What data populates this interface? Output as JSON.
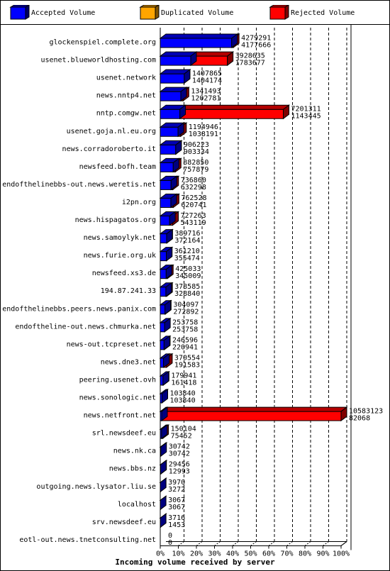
{
  "legend": {
    "items": [
      {
        "label": "Accepted Volume",
        "color": "#0000ff"
      },
      {
        "label": "Duplicated Volume",
        "color": "#ffa500"
      },
      {
        "label": "Rejected Volume",
        "color": "#ff0000"
      }
    ]
  },
  "chart_data": {
    "type": "bar",
    "xlabel": "Incoming volume received by server",
    "xlim": [
      0,
      100
    ],
    "x_ticks": [
      "0%",
      "10%",
      "20%",
      "30%",
      "40%",
      "50%",
      "60%",
      "70%",
      "80%",
      "90%",
      "100%"
    ],
    "legend_position": "top",
    "grid": true,
    "series_names": [
      "Accepted Volume",
      "Duplicated Volume",
      "Rejected Volume"
    ],
    "rows": [
      {
        "server": "glockenspiel.complete.org",
        "total": 4279291,
        "accepted": 4177666
      },
      {
        "server": "usenet.blueworldhosting.com",
        "total": 3928635,
        "accepted": 1783677
      },
      {
        "server": "usenet.network",
        "total": 1407865,
        "accepted": 1404174
      },
      {
        "server": "news.nntp4.net",
        "total": 1341493,
        "accepted": 1202781
      },
      {
        "server": "nntp.comgw.net",
        "total": 7201311,
        "accepted": 1143445
      },
      {
        "server": "usenet.goja.nl.eu.org",
        "total": 1194946,
        "accepted": 1038191
      },
      {
        "server": "news.corradoroberto.it",
        "total": 906223,
        "accepted": 903334
      },
      {
        "server": "newsfeed.bofh.team",
        "total": 882850,
        "accepted": 757879
      },
      {
        "server": "endofthelinebbs-out.news.weretis.net",
        "total": 736860,
        "accepted": 632298
      },
      {
        "server": "i2pn.org",
        "total": 762528,
        "accepted": 620741
      },
      {
        "server": "news.hispagatos.org",
        "total": 727263,
        "accepted": 543119
      },
      {
        "server": "news.samoylyk.net",
        "total": 389716,
        "accepted": 372164
      },
      {
        "server": "news.furie.org.uk",
        "total": 361210,
        "accepted": 355474
      },
      {
        "server": "newsfeed.xs3.de",
        "total": 425033,
        "accepted": 345009
      },
      {
        "server": "194.87.241.33",
        "total": 378585,
        "accepted": 328840
      },
      {
        "server": "endofthelinebbs.peers.news.panix.com",
        "total": 304097,
        "accepted": 272892
      },
      {
        "server": "endoftheline-out.news.chmurka.net",
        "total": 253758,
        "accepted": 253758
      },
      {
        "server": "news-out.tcpreset.net",
        "total": 246596,
        "accepted": 220941
      },
      {
        "server": "news.dne3.net",
        "total": 370554,
        "accepted": 191583
      },
      {
        "server": "peering.usenet.ovh",
        "total": 179941,
        "accepted": 161418
      },
      {
        "server": "news.sonologic.net",
        "total": 103840,
        "accepted": 103840
      },
      {
        "server": "news.netfront.net",
        "total": 10583123,
        "accepted": 82068
      },
      {
        "server": "srl.newsdeef.eu",
        "total": 150104,
        "accepted": 75452
      },
      {
        "server": "news.nk.ca",
        "total": 30742,
        "accepted": 30742
      },
      {
        "server": "news.bbs.nz",
        "total": 29456,
        "accepted": 12993
      },
      {
        "server": "outgoing.news.lysator.liu.se",
        "total": 3970,
        "accepted": 3272
      },
      {
        "server": "localhost",
        "total": 3067,
        "accepted": 3067
      },
      {
        "server": "srv.newsdeef.eu",
        "total": 3716,
        "accepted": 1453
      },
      {
        "server": "eotl-out.news.tnetconsulting.net",
        "total": 0,
        "accepted": 0
      }
    ]
  }
}
